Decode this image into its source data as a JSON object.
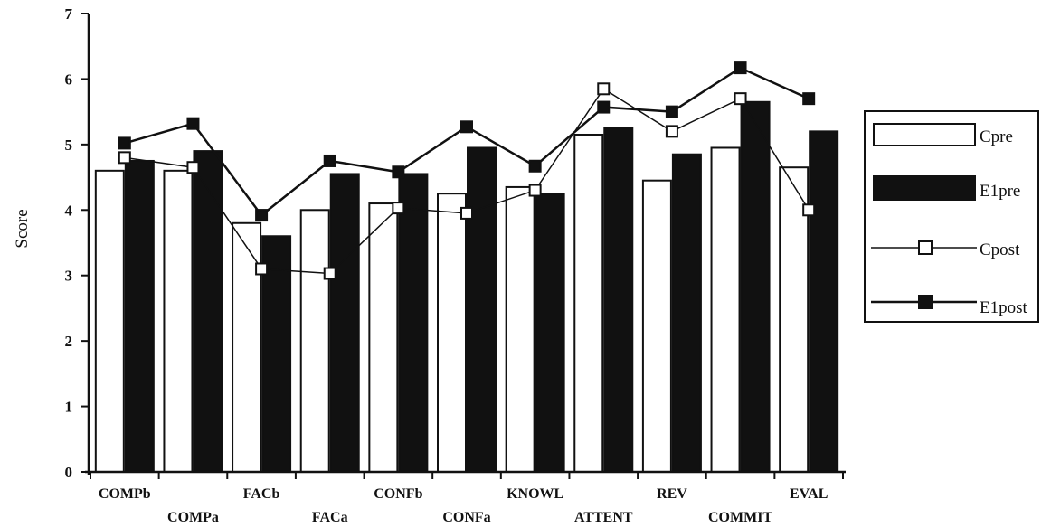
{
  "chart_data": {
    "type": "bar",
    "ylabel": "Score",
    "ylim": [
      0,
      7
    ],
    "yticks": [
      "0",
      "1",
      "2",
      "3",
      "4",
      "5",
      "6",
      "7"
    ],
    "categories": [
      "COMPb",
      "COMPa",
      "FACb",
      "FACa",
      "CONFb",
      "CONFa",
      "KNOWL",
      "ATTENT",
      "REV",
      "COMMIT",
      "EVAL"
    ],
    "bar_series": [
      {
        "name": "Cpre",
        "values": [
          4.6,
          4.6,
          3.8,
          4.0,
          4.1,
          4.25,
          4.35,
          5.15,
          4.45,
          4.95,
          4.65
        ],
        "color": "#ffffff"
      },
      {
        "name": "E1pre",
        "values": [
          4.75,
          4.9,
          3.6,
          4.55,
          4.55,
          4.95,
          4.25,
          5.25,
          4.85,
          5.65,
          5.2
        ],
        "color": "#111111"
      }
    ],
    "line_series": [
      {
        "name": "Cpost",
        "values": [
          4.8,
          4.65,
          3.1,
          3.03,
          4.03,
          3.95,
          4.3,
          5.85,
          5.2,
          5.7,
          4.0
        ],
        "marker": "open-square"
      },
      {
        "name": "E1post",
        "values": [
          5.02,
          5.32,
          3.92,
          4.75,
          4.58,
          5.27,
          4.67,
          5.57,
          5.5,
          6.17,
          5.7
        ],
        "marker": "filled-square"
      }
    ],
    "legend_position": "right",
    "grid": false
  }
}
